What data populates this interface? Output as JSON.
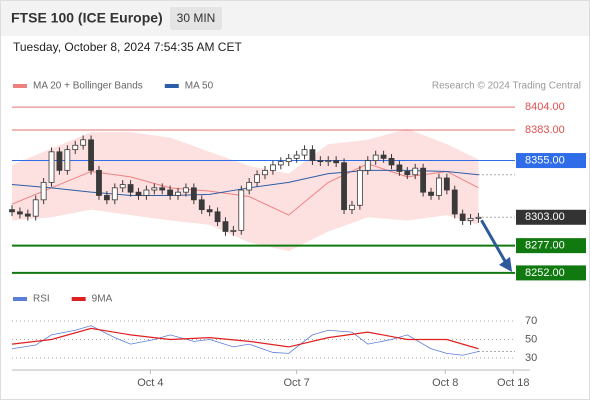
{
  "header": {
    "title": "FTSE 100 (ICE Europe)",
    "interval": "30 MIN",
    "datetime": "Tuesday, October 8, 2024 7:54:35 AM CET"
  },
  "chart_data": [
    {
      "type": "candlestick",
      "source": "Research © 2024 Trading Central",
      "candle_color": "#3a3a3a",
      "xlim": [
        0,
        64
      ],
      "xticks": [
        {
          "value": 17.5,
          "label": "Oct 4"
        },
        {
          "value": 36,
          "label": "Oct 7"
        },
        {
          "value": 54.8,
          "label": "Oct 8"
        },
        {
          "value": 63.4,
          "label": "Oct 18"
        }
      ],
      "ylim": [
        8240,
        8416
      ],
      "x": [
        0,
        1,
        2,
        3,
        4,
        5,
        6,
        7,
        8,
        9,
        10,
        11,
        12,
        13,
        14,
        15,
        16,
        17,
        18,
        19,
        20,
        21,
        22,
        23,
        24,
        25,
        26,
        27,
        28,
        29,
        30,
        31,
        32,
        33,
        34,
        35,
        36,
        37,
        38,
        39,
        40,
        41,
        42,
        43,
        44,
        45,
        46,
        47,
        48,
        49,
        50,
        51,
        52,
        53,
        54,
        55,
        56,
        57,
        58,
        59
      ],
      "open": [
        8310,
        8308,
        8306,
        8304,
        8319,
        8335,
        8363,
        8346,
        8365,
        8369,
        8374,
        8346,
        8323,
        8319,
        8330,
        8333,
        8326,
        8323,
        8328,
        8330,
        8328,
        8323,
        8326,
        8330,
        8319,
        8310,
        8308,
        8299,
        8290,
        8291,
        8328,
        8335,
        8342,
        8346,
        8351,
        8354,
        8357,
        8360,
        8365,
        8355,
        8354,
        8355,
        8353,
        8310,
        8314,
        8346,
        8355,
        8360,
        8357,
        8351,
        8345,
        8342,
        8348,
        8326,
        8323,
        8339,
        8328,
        8306,
        8300,
        8302
      ],
      "high": [
        8314,
        8312,
        8310,
        8323,
        8339,
        8367,
        8367,
        8369,
        8373,
        8378,
        8378,
        8350,
        8327,
        8334,
        8337,
        8337,
        8330,
        8332,
        8334,
        8334,
        8332,
        8330,
        8334,
        8334,
        8323,
        8314,
        8312,
        8303,
        8295,
        8332,
        8339,
        8346,
        8350,
        8355,
        8358,
        8361,
        8364,
        8369,
        8369,
        8359,
        8359,
        8359,
        8357,
        8318,
        8350,
        8359,
        8364,
        8364,
        8361,
        8355,
        8349,
        8352,
        8352,
        8330,
        8343,
        8343,
        8332,
        8310,
        8306,
        8307
      ],
      "low": [
        8304,
        8302,
        8300,
        8300,
        8315,
        8331,
        8342,
        8342,
        8361,
        8365,
        8342,
        8319,
        8315,
        8315,
        8326,
        8322,
        8319,
        8319,
        8324,
        8324,
        8319,
        8319,
        8322,
        8315,
        8306,
        8304,
        8295,
        8286,
        8286,
        8287,
        8324,
        8331,
        8338,
        8342,
        8347,
        8350,
        8353,
        8356,
        8351,
        8350,
        8350,
        8349,
        8306,
        8306,
        8310,
        8342,
        8351,
        8353,
        8347,
        8341,
        8338,
        8338,
        8322,
        8319,
        8319,
        8324,
        8302,
        8296,
        8296,
        8298
      ],
      "close": [
        8308,
        8306,
        8304,
        8319,
        8335,
        8363,
        8346,
        8365,
        8369,
        8374,
        8346,
        8323,
        8319,
        8330,
        8333,
        8326,
        8323,
        8328,
        8330,
        8328,
        8323,
        8326,
        8330,
        8319,
        8310,
        8308,
        8299,
        8290,
        8291,
        8328,
        8335,
        8342,
        8346,
        8351,
        8354,
        8357,
        8360,
        8365,
        8355,
        8354,
        8355,
        8353,
        8310,
        8314,
        8346,
        8355,
        8360,
        8357,
        8351,
        8345,
        8342,
        8348,
        8326,
        8323,
        8339,
        8328,
        8306,
        8300,
        8302,
        8303
      ],
      "series": [
        {
          "name": "MA 20 + Bollinger Bands",
          "color": "#f08080",
          "band_color": "#fde0e0",
          "x": [
            0,
            5,
            10,
            15,
            20,
            25,
            30,
            35,
            40,
            45,
            50,
            55,
            59
          ],
          "values": [
            8315,
            8330,
            8345,
            8340,
            8330,
            8327,
            8322,
            8305,
            8335,
            8352,
            8340,
            8345,
            8330
          ],
          "upper": [
            8351,
            8366,
            8381,
            8381,
            8376,
            8363,
            8350,
            8343,
            8370,
            8374,
            8384,
            8370,
            8356
          ],
          "lower": [
            8300,
            8303,
            8310,
            8305,
            8300,
            8296,
            8280,
            8272,
            8290,
            8303,
            8300,
            8305,
            8296
          ]
        },
        {
          "name": "MA 50",
          "color": "#2c5ea8",
          "x": [
            0,
            5,
            10,
            15,
            20,
            25,
            30,
            35,
            40,
            45,
            50,
            55,
            59
          ],
          "values": [
            8333,
            8330,
            8326,
            8323,
            8323,
            8324,
            8330,
            8335,
            8343,
            8346,
            8346,
            8345,
            8342
          ]
        }
      ],
      "levels": [
        {
          "value": 8404,
          "label": "8404.00",
          "color": "#e05050",
          "boxed": false
        },
        {
          "value": 8383,
          "label": "8383.00",
          "color": "#e05050",
          "boxed": false
        },
        {
          "value": 8355,
          "label": "8355.00",
          "color": "#2f6de8",
          "boxed": true
        },
        {
          "value": 8277,
          "label": "8277.00",
          "color": "#107a10",
          "boxed": true
        },
        {
          "value": 8252,
          "label": "8252.00",
          "color": "#107a10",
          "boxed": true
        }
      ],
      "last": {
        "value": 8303,
        "label": "8303.00",
        "color": "#333333"
      }
    },
    {
      "type": "line",
      "ylim": [
        20,
        80
      ],
      "yticks": [
        70,
        50,
        30
      ],
      "series": [
        {
          "name": "RSI",
          "color": "#5b7fd6",
          "x": [
            0,
            3,
            5,
            8,
            10,
            13,
            15,
            18,
            20,
            23,
            25,
            28,
            30,
            33,
            35,
            38,
            40,
            43,
            45,
            48,
            50,
            53,
            55,
            57,
            59
          ],
          "values": [
            40,
            44,
            55,
            60,
            65,
            52,
            45,
            50,
            55,
            48,
            50,
            42,
            45,
            36,
            35,
            55,
            60,
            58,
            45,
            50,
            55,
            40,
            35,
            33,
            37
          ]
        },
        {
          "name": "9MA",
          "color": "#e02020",
          "x": [
            0,
            5,
            10,
            15,
            20,
            25,
            30,
            35,
            40,
            45,
            50,
            55,
            59
          ],
          "values": [
            45,
            50,
            62,
            55,
            50,
            52,
            48,
            42,
            52,
            58,
            50,
            50,
            40
          ]
        }
      ]
    }
  ]
}
